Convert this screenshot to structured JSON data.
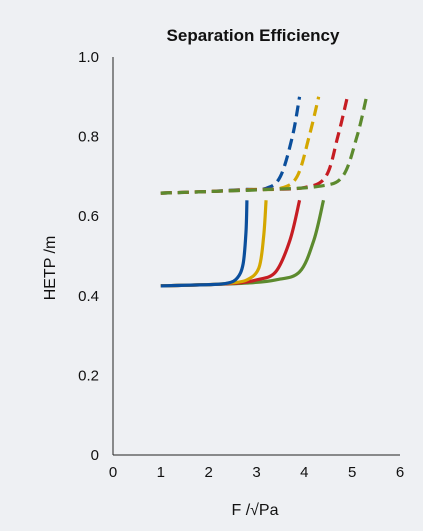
{
  "chart_data": {
    "type": "line",
    "title": "Separation Efficiency",
    "xlabel": "F /√Pa",
    "ylabel": "HETP /m",
    "xlim": [
      0,
      6
    ],
    "ylim": [
      0,
      1.0
    ],
    "x_ticks": [
      0,
      1,
      2,
      3,
      4,
      5,
      6
    ],
    "x_tick_labels": [
      "0",
      "1",
      "2",
      "3",
      "4",
      "5",
      "6"
    ],
    "y_ticks": [
      0,
      0.2,
      0.4,
      0.6,
      0.8,
      1.0
    ],
    "y_tick_labels": [
      "0",
      "0.2",
      "0.4",
      "0.6",
      "0.8",
      "1.0"
    ],
    "grid": false,
    "legend": "none",
    "series": [
      {
        "color": "#0b4f9c",
        "dash": true,
        "x": [
          1.0,
          2.0,
          2.7,
          3.2,
          3.5,
          3.75,
          3.9
        ],
        "y": [
          0.658,
          0.662,
          0.667,
          0.67,
          0.7,
          0.8,
          0.9
        ]
      },
      {
        "color": "#d4a700",
        "dash": true,
        "x": [
          1.0,
          2.0,
          2.9,
          3.5,
          3.85,
          4.1,
          4.3
        ],
        "y": [
          0.658,
          0.662,
          0.667,
          0.67,
          0.7,
          0.8,
          0.9
        ]
      },
      {
        "color": "#c61d23",
        "dash": true,
        "x": [
          1.0,
          2.0,
          3.1,
          4.0,
          4.45,
          4.7,
          4.9
        ],
        "y": [
          0.658,
          0.662,
          0.667,
          0.672,
          0.7,
          0.8,
          0.9
        ]
      },
      {
        "color": "#5c8a2e",
        "dash": true,
        "x": [
          1.0,
          2.0,
          3.2,
          4.3,
          4.8,
          5.1,
          5.3
        ],
        "y": [
          0.658,
          0.662,
          0.667,
          0.675,
          0.7,
          0.8,
          0.9
        ]
      },
      {
        "color": "#5c8a2e",
        "dash": false,
        "x": [
          1.0,
          2.0,
          2.8,
          3.4,
          3.9,
          4.2,
          4.4
        ],
        "y": [
          0.425,
          0.428,
          0.432,
          0.44,
          0.46,
          0.54,
          0.64
        ]
      },
      {
        "color": "#c61d23",
        "dash": false,
        "x": [
          1.0,
          2.0,
          2.6,
          3.0,
          3.4,
          3.7,
          3.9
        ],
        "y": [
          0.425,
          0.428,
          0.432,
          0.44,
          0.46,
          0.54,
          0.64
        ]
      },
      {
        "color": "#d4a700",
        "dash": false,
        "x": [
          1.0,
          2.0,
          2.45,
          2.8,
          3.05,
          3.15,
          3.2
        ],
        "y": [
          0.425,
          0.428,
          0.432,
          0.44,
          0.47,
          0.55,
          0.64
        ]
      },
      {
        "color": "#0b4f9c",
        "dash": false,
        "x": [
          1.0,
          2.0,
          2.4,
          2.6,
          2.72,
          2.78,
          2.8
        ],
        "y": [
          0.425,
          0.428,
          0.432,
          0.445,
          0.48,
          0.56,
          0.64
        ]
      }
    ]
  }
}
